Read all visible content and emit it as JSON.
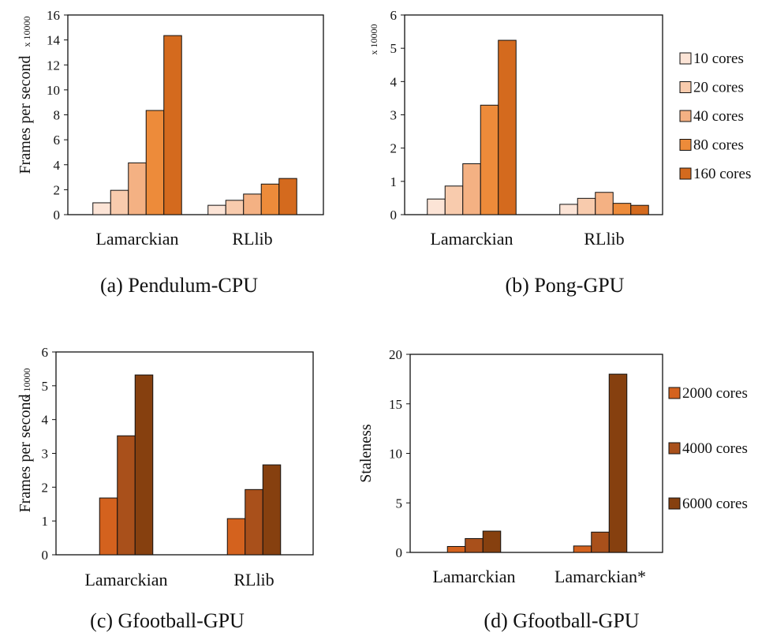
{
  "captions": [
    "(a) Pendulum-CPU",
    "(b) Pong-GPU",
    "(c) Gfootball-GPU",
    "(d) Gfootball-GPU"
  ],
  "legend_top": {
    "entries": [
      "10 cores",
      "20 cores",
      "40 cores",
      "80 cores",
      "160 cores"
    ],
    "colors": [
      "#fce4d6",
      "#f8cbad",
      "#f4b183",
      "#ed8b3a",
      "#d46a1e"
    ]
  },
  "legend_bottom": {
    "entries": [
      "2000 cores",
      "4000 cores",
      "6000 cores"
    ],
    "colors": [
      "#d4621e",
      "#a9501b",
      "#86400f"
    ]
  },
  "chart_data": [
    {
      "type": "bar",
      "caption": "(a) Pendulum-CPU",
      "ylabel": "Frames per second",
      "multiplier_label": "x 10000",
      "ylim": [
        0,
        16
      ],
      "yticks": [
        0,
        2,
        4,
        6,
        8,
        10,
        12,
        14,
        16
      ],
      "categories": [
        "Lamarckian",
        "RLlib"
      ],
      "series": [
        {
          "name": "10 cores",
          "values": [
            0.95,
            0.75
          ]
        },
        {
          "name": "20 cores",
          "values": [
            1.95,
            1.15
          ]
        },
        {
          "name": "40 cores",
          "values": [
            4.15,
            1.65
          ]
        },
        {
          "name": "80 cores",
          "values": [
            8.35,
            2.45
          ]
        },
        {
          "name": "160 cores",
          "values": [
            14.35,
            2.9
          ]
        }
      ]
    },
    {
      "type": "bar",
      "caption": "(b) Pong-GPU",
      "ylabel": "",
      "multiplier_label": "x 10000",
      "ylim": [
        0,
        6
      ],
      "yticks": [
        0,
        1,
        2,
        3,
        4,
        5,
        6
      ],
      "categories": [
        "Lamarckian",
        "RLlib"
      ],
      "series": [
        {
          "name": "10 cores",
          "values": [
            0.47,
            0.31
          ]
        },
        {
          "name": "20 cores",
          "values": [
            0.86,
            0.49
          ]
        },
        {
          "name": "40 cores",
          "values": [
            1.53,
            0.67
          ]
        },
        {
          "name": "80 cores",
          "values": [
            3.29,
            0.34
          ]
        },
        {
          "name": "160 cores",
          "values": [
            5.24,
            0.28
          ]
        }
      ]
    },
    {
      "type": "bar",
      "caption": "(c) Gfootball-GPU",
      "ylabel": "Frames per second",
      "multiplier_label": "x 10000",
      "ylim": [
        0,
        6
      ],
      "yticks": [
        0,
        1,
        2,
        3,
        4,
        5,
        6
      ],
      "categories": [
        "Lamarckian",
        "RLlib"
      ],
      "series": [
        {
          "name": "2000 cores",
          "values": [
            1.68,
            1.07
          ]
        },
        {
          "name": "4000 cores",
          "values": [
            3.52,
            1.93
          ]
        },
        {
          "name": "6000 cores",
          "values": [
            5.32,
            2.66
          ]
        }
      ]
    },
    {
      "type": "bar",
      "caption": "(d) Gfootball-GPU",
      "ylabel": "Staleness",
      "multiplier_label": "",
      "ylim": [
        0,
        20
      ],
      "yticks": [
        0,
        5,
        10,
        15,
        20
      ],
      "categories": [
        "Lamarckian",
        "Lamarckian*"
      ],
      "series": [
        {
          "name": "2000 cores",
          "values": [
            0.6,
            0.65
          ]
        },
        {
          "name": "4000 cores",
          "values": [
            1.4,
            2.05
          ]
        },
        {
          "name": "6000 cores",
          "values": [
            2.15,
            18.0
          ]
        }
      ]
    }
  ]
}
